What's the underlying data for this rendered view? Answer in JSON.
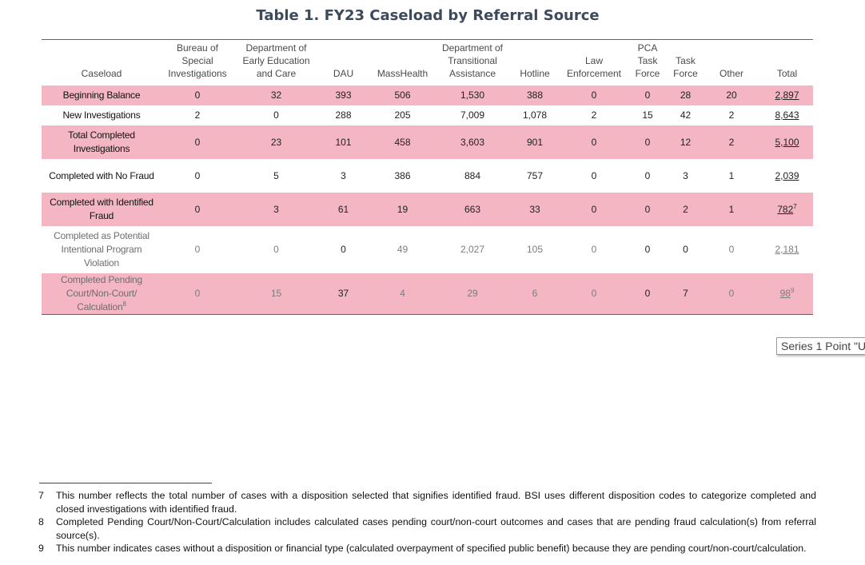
{
  "title": "Table 1. FY23 Caseload by Referral Source",
  "table": {
    "headers": [
      "Caseload",
      "Bureau of Special Investigations",
      "Department of Early Education and Care",
      "DAU",
      "MassHealth",
      "Department of Transitional Assistance",
      "Hotline",
      "Law Enforcement",
      "PCA Task Force",
      "Task Force",
      "Other",
      "Total"
    ],
    "rows": [
      {
        "label": "Beginning Balance",
        "values": [
          "0",
          "32",
          "393",
          "506",
          "1,530",
          "388",
          "0",
          "0",
          "28",
          "20"
        ],
        "total": "2,897",
        "total_sup": ""
      },
      {
        "label": "New Investigations",
        "values": [
          "2",
          "0",
          "288",
          "205",
          "7,009",
          "1,078",
          "2",
          "15",
          "42",
          "2"
        ],
        "total": "8,643",
        "total_sup": ""
      },
      {
        "label": "Total Completed Investigations",
        "values": [
          "0",
          "23",
          "101",
          "458",
          "3,603",
          "901",
          "0",
          "0",
          "12",
          "2"
        ],
        "total": "5,100",
        "total_sup": ""
      },
      {
        "label": "Completed with No Fraud",
        "values": [
          "0",
          "5",
          "3",
          "386",
          "884",
          "757",
          "0",
          "0",
          "3",
          "1"
        ],
        "total": "2,039",
        "total_sup": ""
      },
      {
        "label": "Completed with Identified Fraud",
        "values": [
          "0",
          "3",
          "61",
          "19",
          "663",
          "33",
          "0",
          "0",
          "2",
          "1"
        ],
        "total": "782",
        "total_sup": "7"
      },
      {
        "label": "Completed as Potential Intentional Program Violation",
        "values": [
          "0",
          "0",
          "0",
          "49",
          "2,027",
          "105",
          "0",
          "0",
          "0",
          "0"
        ],
        "total": "2,181",
        "total_sup": ""
      },
      {
        "label": "Completed Pending Court/Non-Court/ Calculation",
        "label_sup": "8",
        "values": [
          "0",
          "15",
          "37",
          "4",
          "29",
          "6",
          "0",
          "0",
          "7",
          "0"
        ],
        "total": "98",
        "total_sup": "9"
      }
    ]
  },
  "tooltip": "Series 1 Point \"U",
  "footnotes": [
    {
      "num": "7",
      "text": "This number reflects the total number of cases with a disposition selected that signifies identified fraud. BSI uses different disposition codes to categorize completed and closed investigations with identified fraud."
    },
    {
      "num": "8",
      "text": "Completed Pending Court/Non-Court/Calculation includes calculated cases pending court/non-court outcomes and cases that are pending fraud calculation(s) from referral source(s)."
    },
    {
      "num": "9",
      "text": "This number indicates cases without a disposition or financial type (calculated overpayment of specified public benefit) because they are pending court/non-court/calculation."
    }
  ]
}
